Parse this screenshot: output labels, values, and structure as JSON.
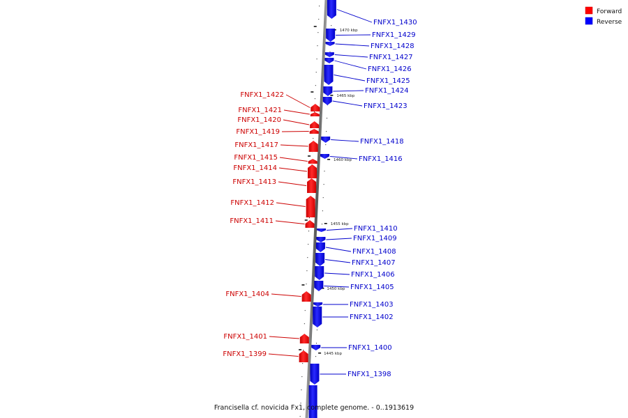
{
  "caption": "Francisella cf. novicida Fx1, complete genome. - 0..1913619",
  "legend": {
    "forward": {
      "label": "Forward",
      "color": "#ff0000"
    },
    "reverse": {
      "label": "Reverse",
      "color": "#0000ff"
    }
  },
  "ticks": [
    {
      "label": "1470 kbp",
      "kbp": 1470
    },
    {
      "label": "1465 kbp",
      "kbp": 1465
    },
    {
      "label": "1460 kbp",
      "kbp": 1460
    },
    {
      "label": "1455 kbp",
      "kbp": 1455
    },
    {
      "label": "1450 kbp",
      "kbp": 1450
    },
    {
      "label": "1445 kbp",
      "kbp": 1445
    }
  ],
  "genes": [
    {
      "name": "FNFX1_1430",
      "strand": "reverse"
    },
    {
      "name": "FNFX1_1429",
      "strand": "reverse"
    },
    {
      "name": "FNFX1_1428",
      "strand": "reverse"
    },
    {
      "name": "FNFX1_1427",
      "strand": "reverse"
    },
    {
      "name": "FNFX1_1426",
      "strand": "reverse"
    },
    {
      "name": "FNFX1_1425",
      "strand": "reverse"
    },
    {
      "name": "FNFX1_1424",
      "strand": "reverse"
    },
    {
      "name": "FNFX1_1423",
      "strand": "reverse"
    },
    {
      "name": "FNFX1_1422",
      "strand": "forward"
    },
    {
      "name": "FNFX1_1421",
      "strand": "forward"
    },
    {
      "name": "FNFX1_1420",
      "strand": "forward"
    },
    {
      "name": "FNFX1_1419",
      "strand": "forward"
    },
    {
      "name": "FNFX1_1418",
      "strand": "reverse"
    },
    {
      "name": "FNFX1_1417",
      "strand": "forward"
    },
    {
      "name": "FNFX1_1416",
      "strand": "reverse"
    },
    {
      "name": "FNFX1_1415",
      "strand": "forward"
    },
    {
      "name": "FNFX1_1414",
      "strand": "forward"
    },
    {
      "name": "FNFX1_1413",
      "strand": "forward"
    },
    {
      "name": "FNFX1_1412",
      "strand": "forward"
    },
    {
      "name": "FNFX1_1411",
      "strand": "forward"
    },
    {
      "name": "FNFX1_1410",
      "strand": "reverse"
    },
    {
      "name": "FNFX1_1409",
      "strand": "reverse"
    },
    {
      "name": "FNFX1_1408",
      "strand": "reverse"
    },
    {
      "name": "FNFX1_1407",
      "strand": "reverse"
    },
    {
      "name": "FNFX1_1406",
      "strand": "reverse"
    },
    {
      "name": "FNFX1_1405",
      "strand": "reverse"
    },
    {
      "name": "FNFX1_1404",
      "strand": "forward"
    },
    {
      "name": "FNFX1_1403",
      "strand": "reverse"
    },
    {
      "name": "FNFX1_1402",
      "strand": "reverse"
    },
    {
      "name": "FNFX1_1401",
      "strand": "forward"
    },
    {
      "name": "FNFX1_1400",
      "strand": "reverse"
    },
    {
      "name": "FNFX1_1399",
      "strand": "forward"
    },
    {
      "name": "FNFX1_1398",
      "strand": "reverse"
    }
  ]
}
